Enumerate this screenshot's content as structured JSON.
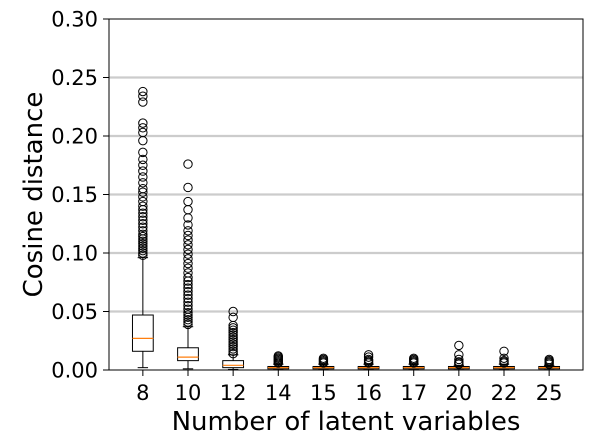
{
  "chart_data": {
    "type": "box",
    "title": "",
    "xlabel": "Number of latent variables",
    "ylabel": "Cosine distance",
    "ylim": [
      0,
      0.3
    ],
    "yticks": [
      0.0,
      0.05,
      0.1,
      0.15,
      0.2,
      0.25,
      0.3
    ],
    "ytick_labels": [
      "0.00",
      "0.05",
      "0.10",
      "0.15",
      "0.20",
      "0.25",
      "0.30"
    ],
    "grid": "horizontal",
    "categories": [
      "8",
      "10",
      "12",
      "14",
      "15",
      "16",
      "17",
      "20",
      "22",
      "25"
    ],
    "boxes": [
      {
        "category": "8",
        "whislo": 0.002,
        "q1": 0.016,
        "median": 0.027,
        "q3": 0.047,
        "whishi": 0.096,
        "fliers": [
          0.098,
          0.1,
          0.102,
          0.104,
          0.106,
          0.108,
          0.11,
          0.112,
          0.114,
          0.116,
          0.119,
          0.122,
          0.125,
          0.128,
          0.131,
          0.134,
          0.137,
          0.14,
          0.144,
          0.148,
          0.152,
          0.155,
          0.16,
          0.165,
          0.17,
          0.175,
          0.18,
          0.186,
          0.196,
          0.203,
          0.207,
          0.211,
          0.229,
          0.234,
          0.238
        ]
      },
      {
        "category": "10",
        "whislo": 0.001,
        "q1": 0.008,
        "median": 0.011,
        "q3": 0.019,
        "whishi": 0.037,
        "fliers": [
          0.039,
          0.041,
          0.043,
          0.045,
          0.047,
          0.049,
          0.052,
          0.055,
          0.058,
          0.061,
          0.064,
          0.067,
          0.07,
          0.073,
          0.076,
          0.079,
          0.083,
          0.087,
          0.091,
          0.095,
          0.099,
          0.103,
          0.107,
          0.111,
          0.115,
          0.119,
          0.124,
          0.13,
          0.137,
          0.144,
          0.156,
          0.176
        ]
      },
      {
        "category": "12",
        "whislo": 0.0005,
        "q1": 0.002,
        "median": 0.004,
        "q3": 0.008,
        "whishi": 0.013,
        "fliers": [
          0.014,
          0.016,
          0.018,
          0.02,
          0.022,
          0.024,
          0.026,
          0.028,
          0.03,
          0.032,
          0.034,
          0.036,
          0.038,
          0.045,
          0.05
        ]
      },
      {
        "category": "14",
        "whislo": 0.0003,
        "q1": 0.001,
        "median": 0.002,
        "q3": 0.003,
        "whishi": 0.005,
        "fliers": [
          0.006,
          0.007,
          0.008,
          0.009,
          0.01,
          0.011,
          0.012
        ]
      },
      {
        "category": "15",
        "whislo": 0.0003,
        "q1": 0.001,
        "median": 0.002,
        "q3": 0.003,
        "whishi": 0.005,
        "fliers": [
          0.006,
          0.007,
          0.008,
          0.009,
          0.01
        ]
      },
      {
        "category": "16",
        "whislo": 0.0003,
        "q1": 0.001,
        "median": 0.002,
        "q3": 0.003,
        "whishi": 0.005,
        "fliers": [
          0.006,
          0.007,
          0.008,
          0.009,
          0.011,
          0.013
        ]
      },
      {
        "category": "17",
        "whislo": 0.0003,
        "q1": 0.001,
        "median": 0.002,
        "q3": 0.003,
        "whishi": 0.005,
        "fliers": [
          0.006,
          0.007,
          0.008,
          0.009,
          0.01
        ]
      },
      {
        "category": "20",
        "whislo": 0.0002,
        "q1": 0.001,
        "median": 0.002,
        "q3": 0.003,
        "whishi": 0.004,
        "fliers": [
          0.005,
          0.006,
          0.007,
          0.009,
          0.013,
          0.021
        ]
      },
      {
        "category": "22",
        "whislo": 0.0003,
        "q1": 0.001,
        "median": 0.002,
        "q3": 0.003,
        "whishi": 0.005,
        "fliers": [
          0.006,
          0.007,
          0.008,
          0.01,
          0.016
        ]
      },
      {
        "category": "25",
        "whislo": 0.0002,
        "q1": 0.001,
        "median": 0.002,
        "q3": 0.003,
        "whishi": 0.004,
        "fliers": [
          0.005,
          0.006,
          0.007,
          0.008,
          0.009
        ]
      }
    ],
    "colors": {
      "box": "#000000",
      "median": "#ff7f0e",
      "grid": "#cccccc",
      "flier": "#000000"
    }
  }
}
